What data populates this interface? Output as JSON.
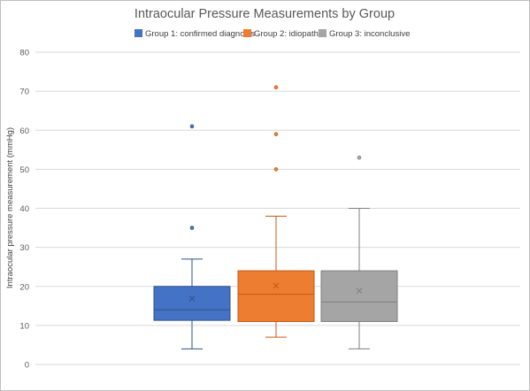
{
  "chart_data": {
    "type": "box",
    "title": "Intraocular Pressure Measurements by Group",
    "xlabel": "",
    "ylabel": "Intraocular pressure measurement (mmHg)",
    "ylim": [
      0,
      80
    ],
    "yticks": [
      0,
      10,
      20,
      30,
      40,
      50,
      60,
      70,
      80
    ],
    "grid": true,
    "legend_position": "top",
    "series": [
      {
        "name": "Group 1: confirmed diagnosis",
        "color": "#4472c4",
        "stroke": "#2f528f",
        "whisker_low": 4,
        "q1": 11.3,
        "median": 14,
        "q3": 20,
        "whisker_high": 27,
        "mean": 16.9,
        "outliers": [
          35,
          61
        ]
      },
      {
        "name": "Group 2: idiopathic",
        "color": "#ed7d31",
        "stroke": "#c55a11",
        "whisker_low": 7,
        "q1": 11,
        "median": 18,
        "q3": 24,
        "whisker_high": 38,
        "mean": 20.2,
        "outliers": [
          50,
          59,
          71
        ]
      },
      {
        "name": "Group 3: inconclusive",
        "color": "#a5a5a5",
        "stroke": "#7f7f7f",
        "whisker_low": 4,
        "q1": 11,
        "median": 16,
        "q3": 24,
        "whisker_high": 40,
        "mean": 18.9,
        "outliers": [
          53
        ]
      }
    ]
  }
}
